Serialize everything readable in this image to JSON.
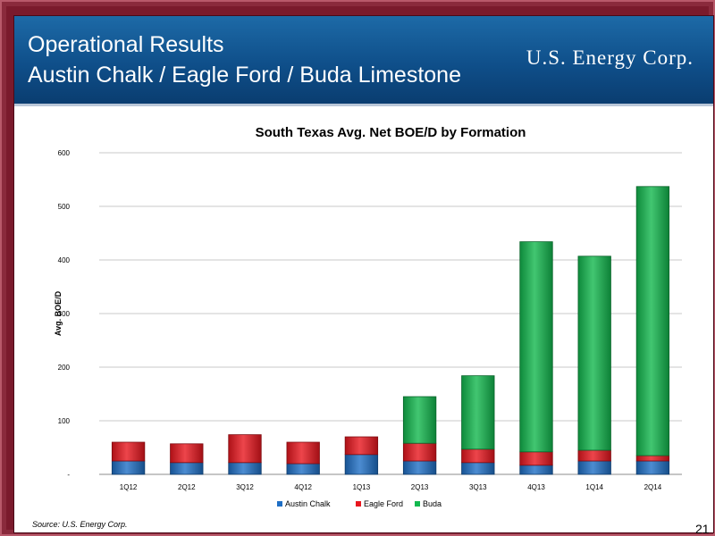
{
  "header": {
    "title_line1": "Operational Results",
    "title_line2": "Austin Chalk / Eagle Ford / Buda Limestone",
    "logo_text": "U.S. Energy Corp."
  },
  "footer": {
    "source": "Source: U.S. Energy Corp.",
    "page_number": "21"
  },
  "chart_data": {
    "type": "bar",
    "stacked": true,
    "title": "South Texas Avg. Net BOE/D by Formation",
    "xlabel": "",
    "ylabel": "Avg. BOE/D",
    "ylim": [
      0,
      600
    ],
    "yticks": [
      "-",
      "100",
      "200",
      "300",
      "400",
      "500",
      "600"
    ],
    "grid": true,
    "legend_position": "bottom",
    "categories": [
      "1Q12",
      "2Q12",
      "3Q12",
      "4Q12",
      "1Q13",
      "2Q13",
      "3Q13",
      "4Q13",
      "1Q14",
      "2Q14"
    ],
    "series": [
      {
        "name": "Austin Chalk",
        "color": "#1f6fc5",
        "values": [
          25,
          22,
          22,
          20,
          37,
          25,
          22,
          17,
          25,
          25
        ]
      },
      {
        "name": "Eagle Ford",
        "color": "#e8161e",
        "values": [
          35,
          35,
          52,
          40,
          33,
          33,
          25,
          25,
          20,
          10
        ]
      },
      {
        "name": "Buda",
        "color": "#13b84e",
        "values": [
          0,
          0,
          0,
          0,
          0,
          87,
          137,
          392,
          362,
          502
        ]
      }
    ]
  }
}
